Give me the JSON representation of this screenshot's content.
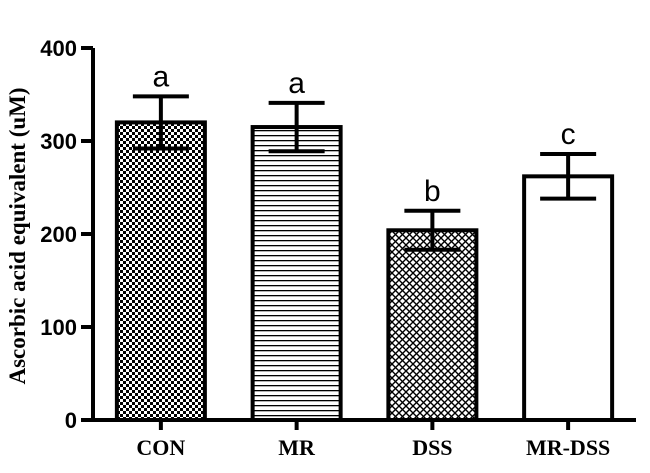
{
  "chart_data": {
    "type": "bar",
    "title": "",
    "xlabel": "",
    "ylabel": "Ascorbic  acid equivalent (uM)",
    "ylim": [
      0,
      400
    ],
    "yticks": [
      "0",
      "100",
      "200",
      "300",
      "400"
    ],
    "categories": [
      "CON",
      "MR",
      "DSS",
      "MR-DSS"
    ],
    "values": [
      320,
      315,
      204,
      262
    ],
    "errors": [
      28,
      26,
      21,
      24
    ],
    "significance_letters": [
      "a",
      "a",
      "b",
      "c"
    ],
    "fill_patterns": [
      "checkerboard",
      "horizontal-lines",
      "diagonal-crosshatch",
      "solid-white"
    ],
    "grid": false,
    "legend": "none"
  }
}
